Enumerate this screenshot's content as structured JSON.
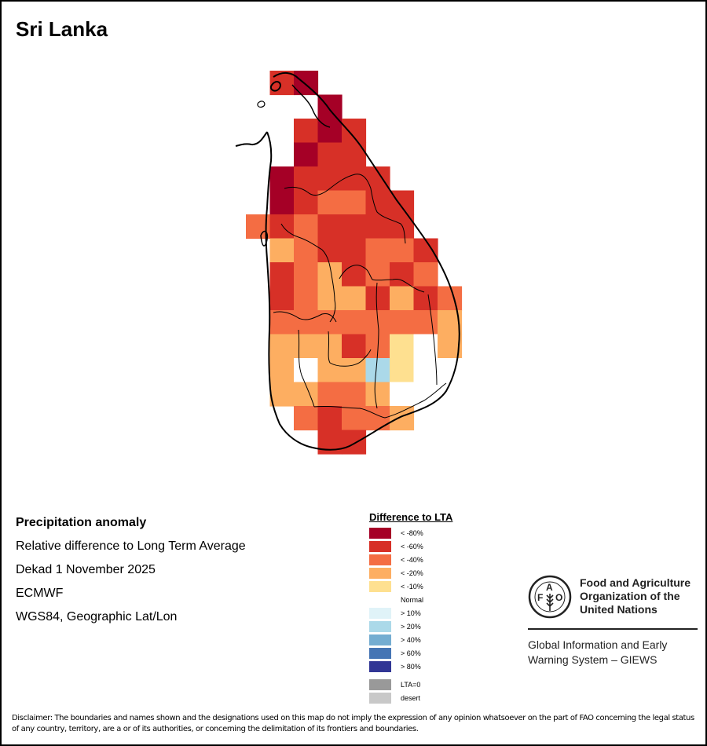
{
  "title": "Sri Lanka",
  "info": {
    "heading": "Precipitation anomaly",
    "line1": "Relative difference to Long Term Average",
    "line2": "Dekad 1 November 2025",
    "line3": "ECMWF",
    "line4": "WGS84, Geographic Lat/Lon"
  },
  "legend": {
    "title": "Difference to LTA",
    "classes": [
      {
        "key": "r80",
        "label": "< -80%",
        "color": "#a50026"
      },
      {
        "key": "r60",
        "label": "< -60%",
        "color": "#d73027"
      },
      {
        "key": "r40",
        "label": "< -40%",
        "color": "#f46d43"
      },
      {
        "key": "y20",
        "label": "< -20%",
        "color": "#fdae61"
      },
      {
        "key": "y10",
        "label": "< -10%",
        "color": "#fee090"
      },
      {
        "key": "n",
        "label": "Normal",
        "color": "#ffffff"
      },
      {
        "key": "b10",
        "label": "> 10%",
        "color": "#e0f3f8"
      },
      {
        "key": "b20",
        "label": "> 20%",
        "color": "#abd9e9"
      },
      {
        "key": "b40",
        "label": "> 40%",
        "color": "#74add1"
      },
      {
        "key": "b60",
        "label": "> 60%",
        "color": "#4575b4"
      },
      {
        "key": "b80",
        "label": "> 80%",
        "color": "#313695"
      }
    ],
    "extra": [
      {
        "key": "lta0",
        "label": "LTA=0",
        "color": "#999999"
      },
      {
        "key": "desert",
        "label": "desert",
        "color": "#c8c8c8"
      }
    ]
  },
  "map_grid": {
    "cell_step_deg": 0.25,
    "rows": [
      [
        null,
        "r60",
        "r80",
        null,
        null,
        null,
        null,
        null,
        null,
        null
      ],
      [
        null,
        null,
        null,
        "r80",
        null,
        null,
        null,
        null,
        null,
        null
      ],
      [
        null,
        null,
        "r60",
        "r80",
        "r60",
        null,
        null,
        null,
        null,
        null
      ],
      [
        null,
        null,
        "r80",
        "r60",
        "r60",
        null,
        null,
        null,
        null,
        null
      ],
      [
        null,
        "r80",
        "r60",
        "r60",
        "r60",
        "r60",
        null,
        null,
        null,
        null
      ],
      [
        null,
        "r80",
        "r60",
        "r40",
        "r40",
        "r60",
        "r60",
        null,
        null,
        null
      ],
      [
        "r40",
        "r60",
        "r40",
        "r60",
        "r60",
        "r60",
        "r60",
        null,
        null,
        null
      ],
      [
        null,
        "y20",
        "r40",
        "r60",
        "r60",
        "r40",
        "r40",
        "r60",
        null,
        null
      ],
      [
        null,
        "r60",
        "r40",
        "y20",
        "r60",
        "r40",
        "r60",
        "r40",
        null,
        null
      ],
      [
        null,
        "r60",
        "r40",
        "y20",
        "y20",
        "r60",
        "y20",
        "r60",
        "r40",
        null
      ],
      [
        null,
        "r40",
        "r40",
        "r40",
        "r40",
        "r40",
        "r40",
        "r40",
        "y20",
        null
      ],
      [
        null,
        "y20",
        "y20",
        "y20",
        "r60",
        "r40",
        "y10",
        "n",
        "y20",
        null
      ],
      [
        null,
        "y20",
        "n",
        "y20",
        "y20",
        "b20",
        "y10",
        "n",
        "n",
        null
      ],
      [
        null,
        "y20",
        "y20",
        "r40",
        "r40",
        "y20",
        "n",
        null,
        null,
        null
      ],
      [
        null,
        null,
        "r40",
        "r60",
        "r40",
        "r40",
        "y20",
        null,
        null,
        null
      ],
      [
        null,
        null,
        null,
        "r60",
        "r60",
        null,
        null,
        null,
        null,
        null
      ]
    ]
  },
  "fao": {
    "logo_letters": "FAO",
    "logo_motto": "FIAT PANIS",
    "org_line1": "Food and Agriculture",
    "org_line2": "Organization of the",
    "org_line3": "United Nations",
    "giews_line1": "Global Information and Early",
    "giews_line2": "Warning System – GIEWS"
  },
  "disclaimer": "Disclaimer: The boundaries and names shown and the designations used on this map do not imply the expression of any opinion whatsoever on the part of FAO concerning the legal status of any country, territory, are a or of its authorities, or concerning the delimitation of its frontiers and boundaries."
}
